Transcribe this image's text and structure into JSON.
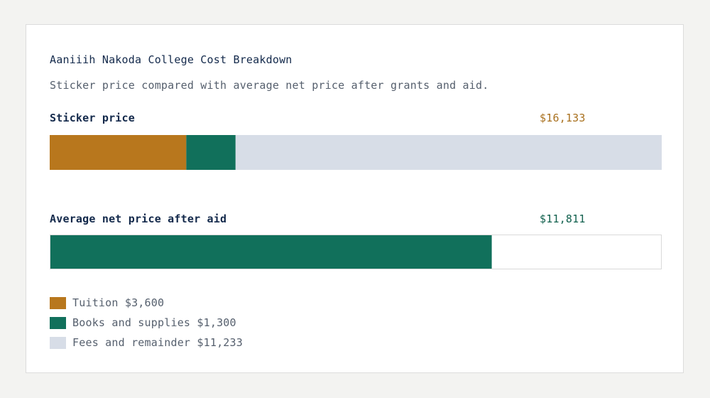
{
  "chart_data": {
    "type": "bar",
    "title": "Aaniiih Nakoda College Cost Breakdown",
    "subtitle": "Sticker price compared with average net price after grants and aid.",
    "sticker": {
      "label": "Sticker price",
      "total": 16133,
      "total_label": "$16,133",
      "segments": [
        {
          "name": "Tuition",
          "value": 3600,
          "color": "#b8771d"
        },
        {
          "name": "Books and supplies",
          "value": 1300,
          "color": "#11705b"
        },
        {
          "name": "Fees and remainder",
          "value": 11233,
          "color": "#d7dde7"
        }
      ]
    },
    "net": {
      "label": "Average net price after aid",
      "value": 11811,
      "value_label": "$11,811",
      "color": "#11705b"
    },
    "legend": [
      {
        "label": "Tuition $3,600",
        "color": "#b8771d"
      },
      {
        "label": "Books and supplies $1,300",
        "color": "#11705b"
      },
      {
        "label": "Fees and remainder $11,233",
        "color": "#d7dde7"
      }
    ],
    "colors": {
      "sticker_value": "#a9711f",
      "net_value": "#0f5f4c",
      "net_track_border": "#d9d9d9"
    }
  }
}
